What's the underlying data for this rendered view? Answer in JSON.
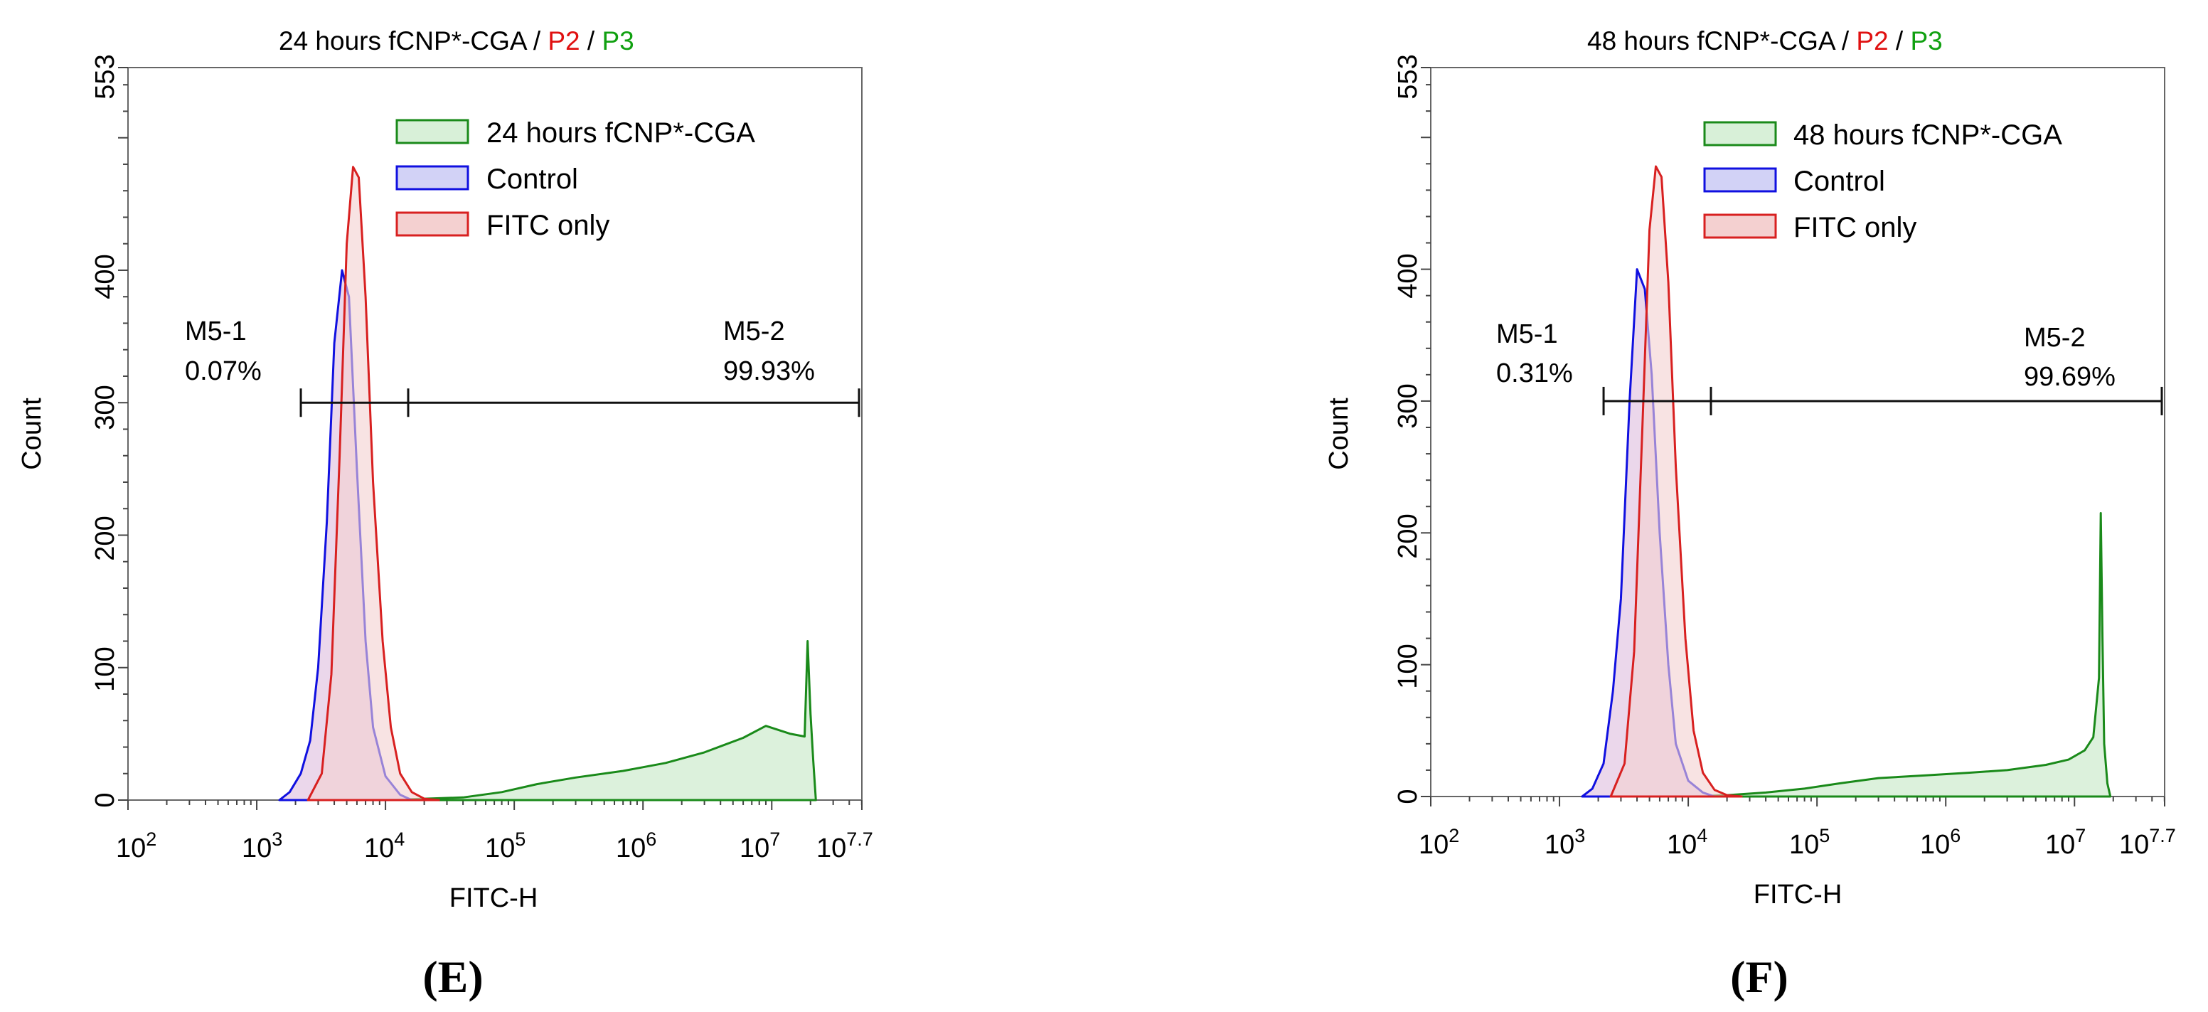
{
  "colors": {
    "green": "#1a8a1a",
    "green_fill": "#d8f0d8",
    "blue": "#1010e0",
    "red": "#d82020",
    "overlap_fill": "#e8d0e8",
    "red_fill": "#f4d0d0"
  },
  "chart_data": [
    {
      "type": "area",
      "panel": "(E)",
      "title": {
        "main": "24 hours fCNP*-CGA",
        "sep": "/",
        "p2": "P2",
        "p3": "P3"
      },
      "xlabel": "FITC-H",
      "ylabel": "Count",
      "x_scale": "log10",
      "xlim": [
        100,
        50118723
      ],
      "ylim": [
        0,
        553
      ],
      "x_tick_labels": [
        {
          "base": "10",
          "exp": "2"
        },
        {
          "base": "10",
          "exp": "3"
        },
        {
          "base": "10",
          "exp": "4"
        },
        {
          "base": "10",
          "exp": "5"
        },
        {
          "base": "10",
          "exp": "6"
        },
        {
          "base": "10",
          "exp": "7"
        },
        {
          "base": "10",
          "exp": "7.7"
        }
      ],
      "y_ticks": [
        "0",
        "100",
        "200",
        "300",
        "400",
        "553"
      ],
      "legend": [
        "24 hours fCNP*-CGA",
        "Control",
        "FITC only"
      ],
      "gates": [
        {
          "name": "M5-1",
          "percent": "0.07%",
          "x_start": 2200,
          "x_end": 15000
        },
        {
          "name": "M5-2",
          "percent": "99.93%",
          "x_start": 15000,
          "x_end": 50118723
        }
      ],
      "gate_y": 300,
      "series": [
        {
          "name": "24 hours fCNP*-CGA",
          "color": "green",
          "x": [
            3000,
            10000,
            20000,
            40000,
            80000,
            150000,
            300000,
            700000,
            1500000,
            3000000,
            6000000,
            9000000,
            14000000,
            18000000,
            19000000,
            20000000,
            21000000,
            22000000
          ],
          "y": [
            0,
            0,
            1,
            2,
            6,
            12,
            17,
            22,
            28,
            36,
            47,
            56,
            50,
            48,
            120,
            65,
            30,
            0
          ]
        },
        {
          "name": "Control",
          "color": "blue",
          "x": [
            1500,
            1800,
            2200,
            2600,
            3000,
            3500,
            4000,
            4600,
            5200,
            6000,
            7000,
            8000,
            10000,
            13000,
            16000
          ],
          "y": [
            0,
            6,
            20,
            45,
            100,
            210,
            345,
            400,
            380,
            250,
            120,
            55,
            18,
            4,
            0
          ]
        },
        {
          "name": "FITC only",
          "color": "red",
          "x": [
            2500,
            3200,
            3800,
            4400,
            5000,
            5600,
            6200,
            7000,
            8000,
            9500,
            11000,
            13000,
            16000,
            20000,
            26000
          ],
          "y": [
            0,
            20,
            95,
            260,
            420,
            478,
            470,
            380,
            240,
            120,
            55,
            20,
            6,
            1,
            0
          ]
        }
      ]
    },
    {
      "type": "area",
      "panel": "(F)",
      "title": {
        "main": "48 hours fCNP*-CGA",
        "sep": "/",
        "p2": "P2",
        "p3": "P3"
      },
      "xlabel": "FITC-H",
      "ylabel": "Count",
      "x_scale": "log10",
      "xlim": [
        100,
        50118723
      ],
      "ylim": [
        0,
        553
      ],
      "x_tick_labels": [
        {
          "base": "10",
          "exp": "2"
        },
        {
          "base": "10",
          "exp": "3"
        },
        {
          "base": "10",
          "exp": "4"
        },
        {
          "base": "10",
          "exp": "5"
        },
        {
          "base": "10",
          "exp": "6"
        },
        {
          "base": "10",
          "exp": "7"
        },
        {
          "base": "10",
          "exp": "7.7"
        }
      ],
      "y_ticks": [
        "0",
        "100",
        "200",
        "300",
        "400",
        "553"
      ],
      "legend": [
        "48 hours fCNP*-CGA",
        "Control",
        "FITC only"
      ],
      "gates": [
        {
          "name": "M5-1",
          "percent": "0.31%",
          "x_start": 2200,
          "x_end": 15000
        },
        {
          "name": "M5-2",
          "percent": "99.69%",
          "x_start": 15000,
          "x_end": 50118723
        }
      ],
      "gate_y": 300,
      "series": [
        {
          "name": "48 hours fCNP*-CGA",
          "color": "green",
          "x": [
            3000,
            10000,
            20000,
            40000,
            80000,
            150000,
            300000,
            700000,
            1500000,
            3000000,
            6000000,
            9000000,
            12000000,
            14000000,
            15500000,
            16000000,
            16500000,
            17000000,
            18000000,
            19000000
          ],
          "y": [
            0,
            0,
            1,
            3,
            6,
            10,
            14,
            16,
            18,
            20,
            24,
            28,
            35,
            45,
            90,
            215,
            120,
            40,
            10,
            0
          ]
        },
        {
          "name": "Control",
          "color": "blue",
          "x": [
            1500,
            1800,
            2200,
            2600,
            3000,
            3500,
            4000,
            4600,
            5200,
            6000,
            7000,
            8000,
            10000,
            13000,
            16000
          ],
          "y": [
            0,
            6,
            25,
            80,
            150,
            300,
            400,
            385,
            320,
            200,
            100,
            40,
            12,
            3,
            0
          ]
        },
        {
          "name": "FITC only",
          "color": "red",
          "x": [
            2500,
            3200,
            3800,
            4400,
            5000,
            5600,
            6200,
            7000,
            8000,
            9500,
            11000,
            13000,
            16000,
            20000,
            26000
          ],
          "y": [
            0,
            25,
            110,
            280,
            430,
            478,
            470,
            390,
            250,
            120,
            50,
            18,
            5,
            1,
            0
          ]
        }
      ]
    }
  ]
}
